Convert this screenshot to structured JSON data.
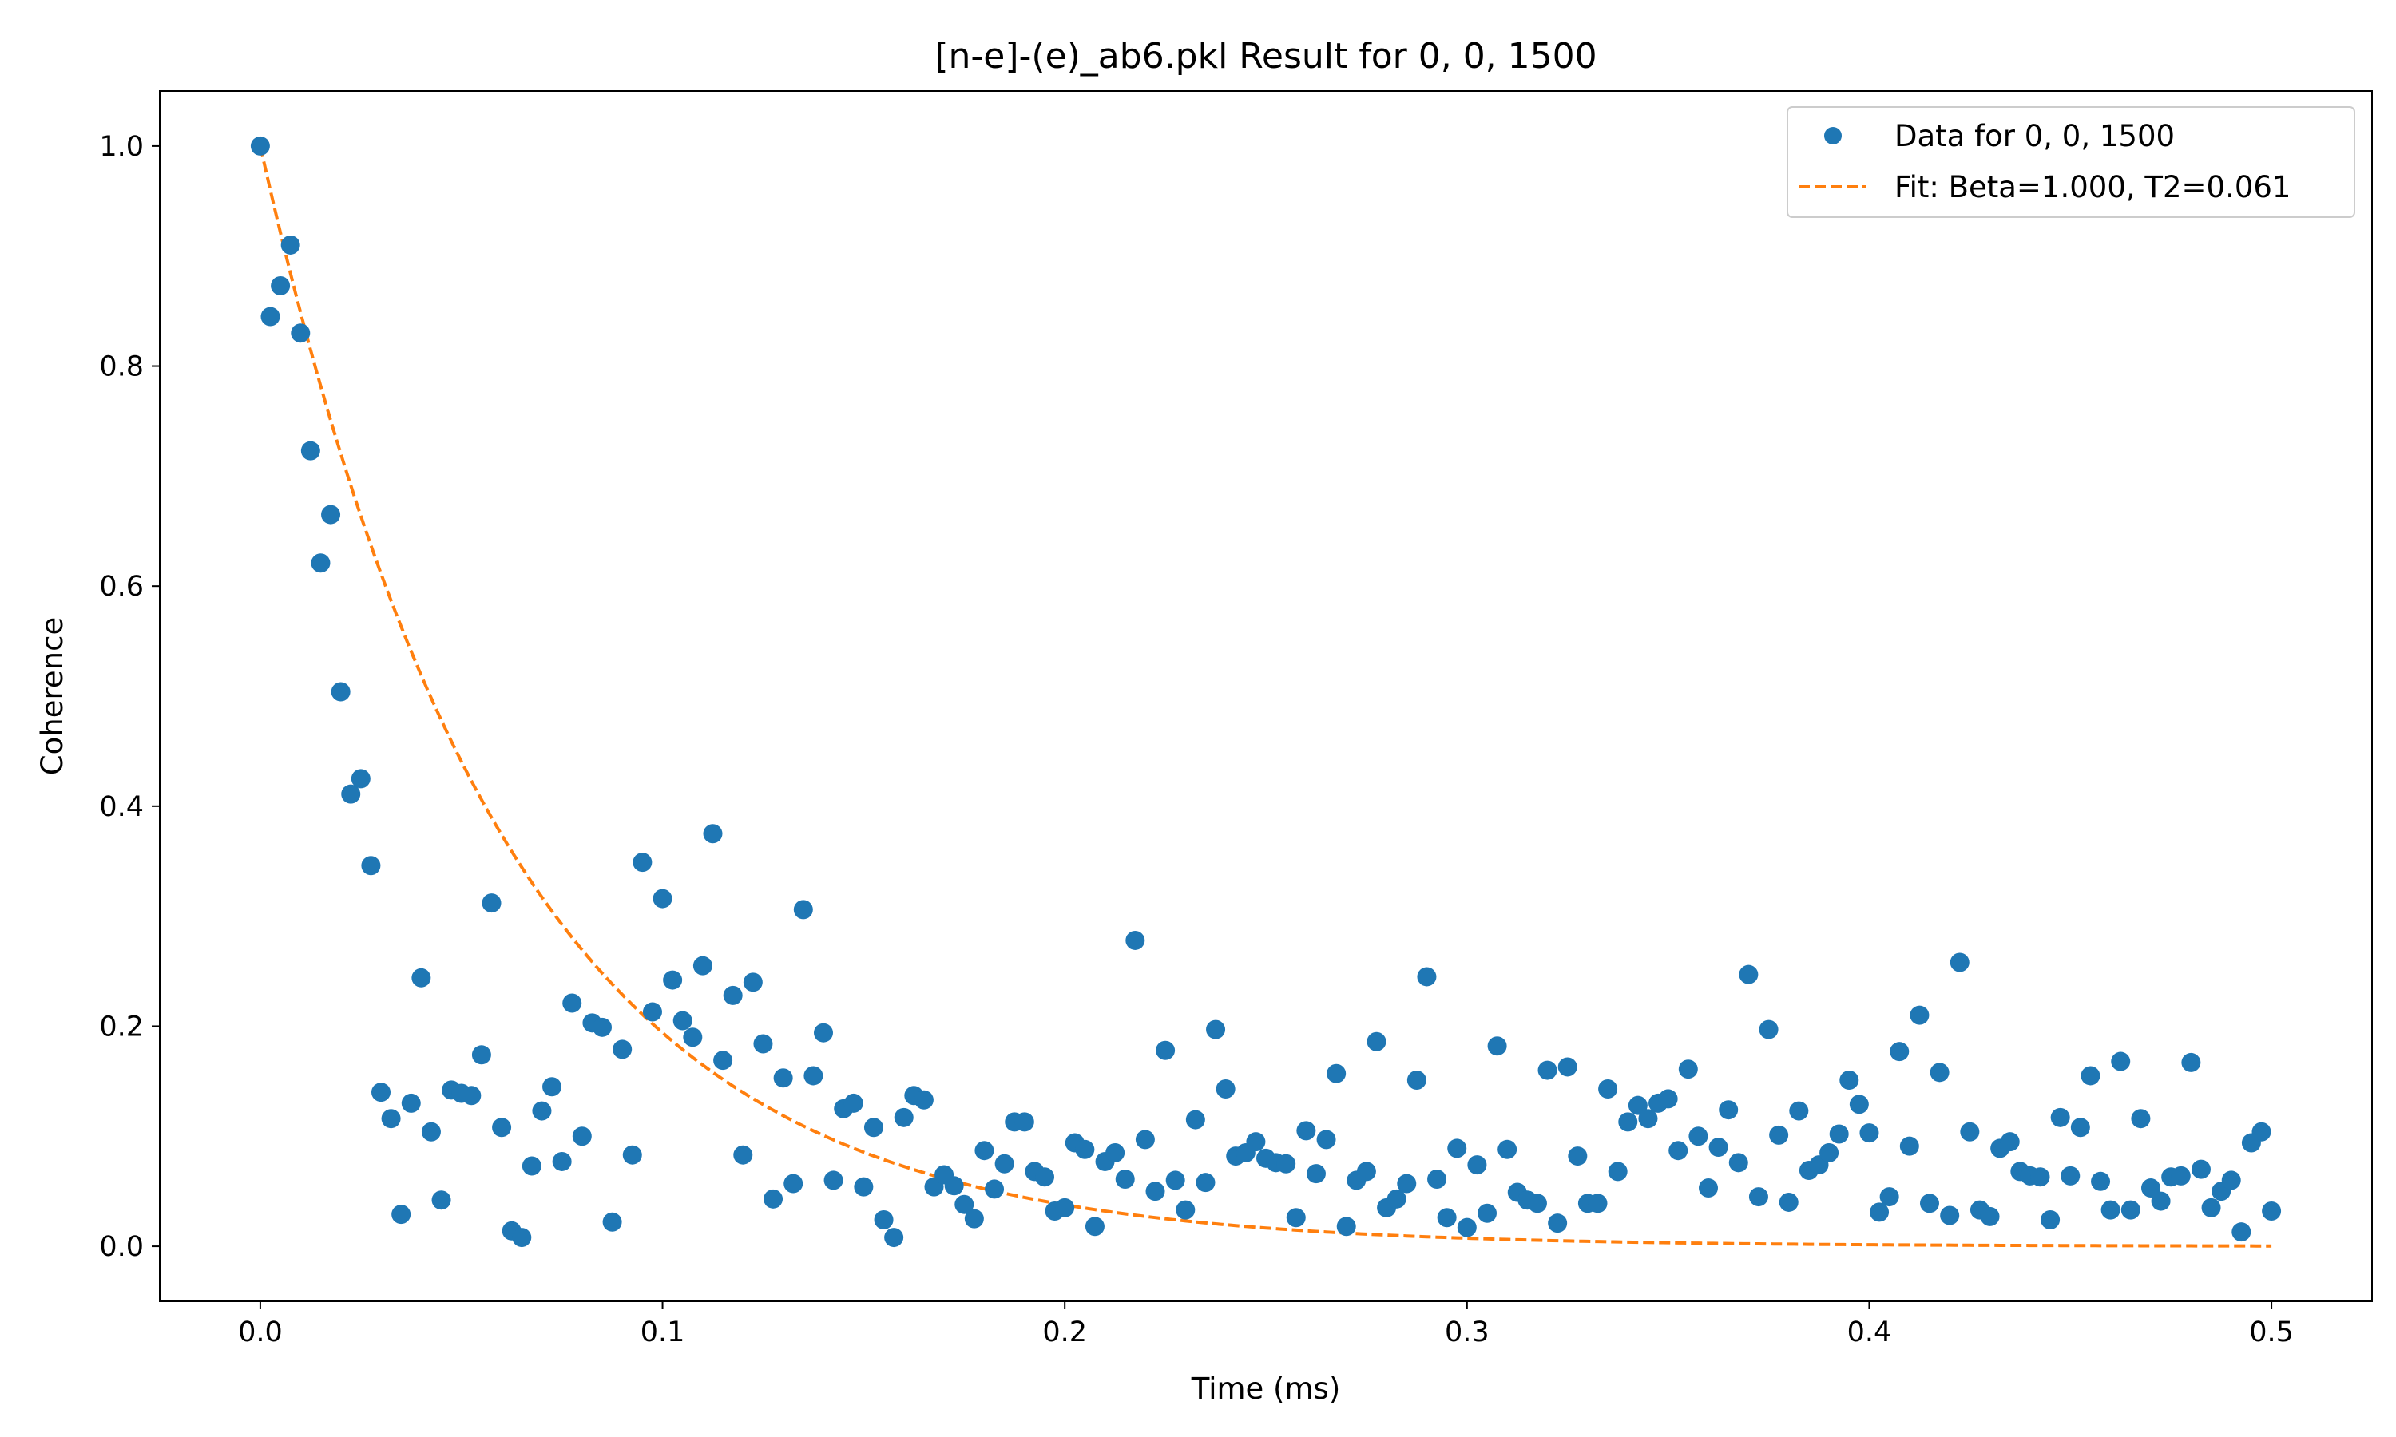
{
  "chart_data": {
    "type": "scatter",
    "title": "[n-e]-(e)_ab6.pkl Result for 0, 0, 1500",
    "xlabel": "Time (ms)",
    "ylabel": "Coherence",
    "xlim": [
      -0.025,
      0.525
    ],
    "ylim": [
      -0.05,
      1.05
    ],
    "x_ticks": [
      0.0,
      0.1,
      0.2,
      0.3,
      0.4,
      0.5
    ],
    "x_tick_labels": [
      "0.0",
      "0.1",
      "0.2",
      "0.3",
      "0.4",
      "0.5"
    ],
    "y_ticks": [
      0.0,
      0.2,
      0.4,
      0.6,
      0.8,
      1.0
    ],
    "y_tick_labels": [
      "0.0",
      "0.2",
      "0.4",
      "0.6",
      "0.8",
      "1.0"
    ],
    "grid": false,
    "legend_position": "top-right",
    "colors": {
      "data": "#1f77b4",
      "fit": "#ff7f0e"
    },
    "series": [
      {
        "name": "Data for 0, 0, 1500",
        "kind": "markers",
        "x": [
          0.0,
          0.0025,
          0.005,
          0.0075,
          0.01,
          0.0125,
          0.015,
          0.0175,
          0.02,
          0.0225,
          0.025,
          0.0275,
          0.03,
          0.0325,
          0.035,
          0.0375,
          0.04,
          0.0425,
          0.045,
          0.0475,
          0.05,
          0.0525,
          0.055,
          0.0575,
          0.06,
          0.0625,
          0.065,
          0.0675,
          0.07,
          0.0725,
          0.075,
          0.0775,
          0.08,
          0.0825,
          0.085,
          0.0875,
          0.09,
          0.0925,
          0.095,
          0.0975,
          0.1,
          0.1025,
          0.105,
          0.1075,
          0.11,
          0.1125,
          0.115,
          0.1175,
          0.12,
          0.1225,
          0.125,
          0.1275,
          0.13,
          0.1325,
          0.135,
          0.1375,
          0.14,
          0.1425,
          0.145,
          0.1475,
          0.15,
          0.1525,
          0.155,
          0.1575,
          0.16,
          0.1625,
          0.165,
          0.1675,
          0.17,
          0.1725,
          0.175,
          0.1775,
          0.18,
          0.1825,
          0.185,
          0.1875,
          0.19,
          0.1925,
          0.195,
          0.1975,
          0.2,
          0.2025,
          0.205,
          0.2075,
          0.21,
          0.2125,
          0.215,
          0.2175,
          0.22,
          0.2225,
          0.225,
          0.2275,
          0.23,
          0.2325,
          0.235,
          0.2375,
          0.24,
          0.2425,
          0.245,
          0.2475,
          0.25,
          0.2525,
          0.255,
          0.2575,
          0.26,
          0.2625,
          0.265,
          0.2675,
          0.27,
          0.2725,
          0.275,
          0.2775,
          0.28,
          0.2825,
          0.285,
          0.2875,
          0.29,
          0.2925,
          0.295,
          0.2975,
          0.3,
          0.3025,
          0.305,
          0.3075,
          0.31,
          0.3125,
          0.315,
          0.3175,
          0.32,
          0.3225,
          0.325,
          0.3275,
          0.33,
          0.3325,
          0.335,
          0.3375,
          0.34,
          0.3425,
          0.345,
          0.3475,
          0.35,
          0.3525,
          0.355,
          0.3575,
          0.36,
          0.3625,
          0.365,
          0.3675,
          0.37,
          0.3725,
          0.375,
          0.3775,
          0.38,
          0.3825,
          0.385,
          0.3875,
          0.39,
          0.3925,
          0.395,
          0.3975,
          0.4,
          0.4025,
          0.405,
          0.4075,
          0.41,
          0.4125,
          0.415,
          0.4175,
          0.42,
          0.4225,
          0.425,
          0.4275,
          0.43,
          0.4325,
          0.435,
          0.4375,
          0.44,
          0.4425,
          0.445,
          0.4475,
          0.45,
          0.4525,
          0.455,
          0.4575,
          0.46,
          0.4625,
          0.465,
          0.4675,
          0.47,
          0.4725,
          0.475,
          0.4775,
          0.48,
          0.4825,
          0.485,
          0.4875,
          0.49,
          0.4925,
          0.495,
          0.4975,
          0.5
        ],
        "y": [
          1.0,
          0.845,
          0.873,
          0.91,
          0.83,
          0.723,
          0.621,
          0.665,
          0.504,
          0.411,
          0.425,
          0.346,
          0.14,
          0.116,
          0.029,
          0.13,
          0.244,
          0.104,
          0.042,
          0.142,
          0.139,
          0.137,
          0.174,
          0.312,
          0.108,
          0.014,
          0.008,
          0.073,
          0.123,
          0.145,
          0.077,
          0.221,
          0.1,
          0.203,
          0.199,
          0.022,
          0.179,
          0.083,
          0.349,
          0.213,
          0.316,
          0.242,
          0.205,
          0.19,
          0.255,
          0.375,
          0.169,
          0.228,
          0.083,
          0.24,
          0.184,
          0.043,
          0.153,
          0.057,
          0.306,
          0.155,
          0.194,
          0.06,
          0.125,
          0.13,
          0.054,
          0.108,
          0.024,
          0.008,
          0.117,
          0.137,
          0.133,
          0.054,
          0.065,
          0.055,
          0.038,
          0.025,
          0.087,
          0.052,
          0.075,
          0.113,
          0.113,
          0.068,
          0.063,
          0.032,
          0.035,
          0.094,
          0.088,
          0.018,
          0.077,
          0.085,
          0.061,
          0.278,
          0.097,
          0.05,
          0.178,
          0.06,
          0.033,
          0.115,
          0.058,
          0.197,
          0.143,
          0.082,
          0.085,
          0.095,
          0.08,
          0.076,
          0.075,
          0.026,
          0.105,
          0.066,
          0.097,
          0.157,
          0.018,
          0.06,
          0.068,
          0.186,
          0.035,
          0.043,
          0.057,
          0.151,
          0.245,
          0.061,
          0.026,
          0.089,
          0.017,
          0.074,
          0.03,
          0.182,
          0.088,
          0.049,
          0.042,
          0.039,
          0.16,
          0.021,
          0.163,
          0.082,
          0.039,
          0.039,
          0.143,
          0.068,
          0.113,
          0.128,
          0.116,
          0.13,
          0.134,
          0.087,
          0.161,
          0.1,
          0.053,
          0.09,
          0.124,
          0.076,
          0.247,
          0.045,
          0.197,
          0.101,
          0.04,
          0.123,
          0.069,
          0.074,
          0.085,
          0.102,
          0.151,
          0.129,
          0.103,
          0.031,
          0.045,
          0.177,
          0.091,
          0.21,
          0.039,
          0.158,
          0.028,
          0.258,
          0.104,
          0.033,
          0.027,
          0.089,
          0.095,
          0.068,
          0.064,
          0.063,
          0.024,
          0.117,
          0.064,
          0.108,
          0.155,
          0.059,
          0.033,
          0.168,
          0.033,
          0.116,
          0.053,
          0.041,
          0.063,
          0.064,
          0.167,
          0.07,
          0.035,
          0.05,
          0.06,
          0.013,
          0.094,
          0.104,
          0.032
        ]
      },
      {
        "name": "Fit: Beta=1.000, T2=0.061",
        "kind": "dashed-line",
        "function": "y = exp(-(x/T2)^Beta)",
        "params": {
          "Beta": 1.0,
          "T2": 0.061
        },
        "x_range": [
          0.0,
          0.5
        ]
      }
    ]
  }
}
